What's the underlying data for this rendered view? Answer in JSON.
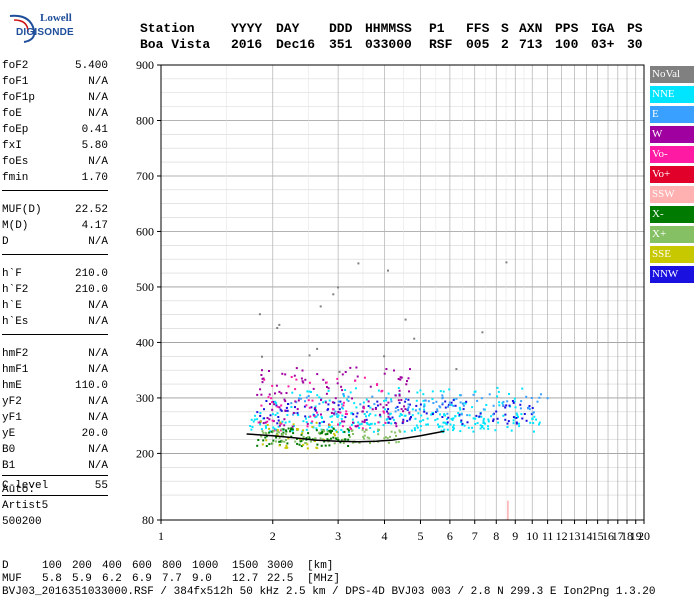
{
  "logo": {
    "line1": "Lowell",
    "line2": "DIGISONDE"
  },
  "header": {
    "labels": [
      "Station",
      "YYYY",
      "DAY",
      "DDD",
      "HHMMSS",
      "P1",
      "FFS",
      "S",
      "AXN",
      "PPS",
      "IGA",
      "PS"
    ],
    "values": [
      "Boa Vista",
      "2016",
      "Dec16",
      "351",
      "033000",
      "RSF",
      "005",
      "2",
      "713",
      "100",
      "03+",
      "30"
    ]
  },
  "params": [
    {
      "key": "foF2",
      "value": "5.400"
    },
    {
      "key": "foF1",
      "value": "N/A"
    },
    {
      "key": "foF1p",
      "value": "N/A"
    },
    {
      "key": "foE",
      "value": "N/A"
    },
    {
      "key": "foEp",
      "value": "0.41"
    },
    {
      "key": "fxI",
      "value": "5.80"
    },
    {
      "key": "foEs",
      "value": "N/A"
    },
    {
      "key": "fmin",
      "value": "1.70"
    },
    {
      "key": "MUF(D)",
      "value": "22.52"
    },
    {
      "key": "M(D)",
      "value": "4.17"
    },
    {
      "key": "D",
      "value": "N/A"
    },
    {
      "key": "h`F",
      "value": "210.0"
    },
    {
      "key": "h`F2",
      "value": "210.0"
    },
    {
      "key": "h`E",
      "value": "N/A"
    },
    {
      "key": "h`Es",
      "value": "N/A"
    },
    {
      "key": "hmF2",
      "value": "N/A"
    },
    {
      "key": "hmF1",
      "value": "N/A"
    },
    {
      "key": "hmE",
      "value": "110.0"
    },
    {
      "key": "yF2",
      "value": "N/A"
    },
    {
      "key": "yF1",
      "value": "N/A"
    },
    {
      "key": "yE",
      "value": "20.0"
    },
    {
      "key": "B0",
      "value": "N/A"
    },
    {
      "key": "B1",
      "value": "N/A"
    },
    {
      "key": "C-level",
      "value": "55"
    }
  ],
  "auto": {
    "line1": "Auto:",
    "line2": "Artist5",
    "line3": "500200"
  },
  "legend": [
    {
      "label": "NoVal",
      "color": "#808080"
    },
    {
      "label": "NNE",
      "color": "#00e5ff"
    },
    {
      "label": "E",
      "color": "#3aa0ff"
    },
    {
      "label": "W",
      "color": "#a000a0"
    },
    {
      "label": "Vo-",
      "color": "#ff1aa3"
    },
    {
      "label": "Vo+",
      "color": "#e0002a"
    },
    {
      "label": "SSW",
      "color": "#ffb0b0"
    },
    {
      "label": "X-",
      "color": "#007a00"
    },
    {
      "label": "X+",
      "color": "#86c064"
    },
    {
      "label": "SSE",
      "color": "#c8c800"
    },
    {
      "label": "NNW",
      "color": "#1a10e0"
    }
  ],
  "footer": {
    "d_label": "D",
    "d_values": [
      "100",
      "200",
      "400",
      "600",
      "800",
      "1000",
      "1500",
      "3000",
      "[km]"
    ],
    "muf_label": "MUF",
    "muf_values": [
      "5.8",
      "5.9",
      "6.2",
      "6.9",
      "7.7",
      "9.0",
      "12.7",
      "22.5",
      "[MHz]"
    ],
    "info": "BVJ03_2016351033000.RSF / 384fx512h 50 kHz 2.5 km / DPS-4D BVJ03 003 / 2.8 N 299.3 E Ion2Png 1.3.20"
  },
  "chart_data": {
    "type": "scatter",
    "xlim": [
      1,
      20
    ],
    "ylim": [
      80,
      900
    ],
    "x_ticks": [
      1,
      2,
      3,
      4,
      5,
      6,
      7,
      8,
      9,
      10,
      11,
      12,
      13,
      14,
      15,
      16,
      17,
      18,
      19,
      20
    ],
    "y_ticks": [
      80,
      200,
      300,
      400,
      500,
      600,
      700,
      800,
      900
    ],
    "grid": true,
    "legend_position": "right",
    "x_scale": "log",
    "trace": {
      "x": [
        1.7,
        2.0,
        2.3,
        2.6,
        3.0,
        3.4,
        3.8,
        4.2,
        4.6,
        5.0,
        5.4,
        5.8
      ],
      "y": [
        235,
        232,
        228,
        224,
        222,
        221,
        222,
        224,
        228,
        232,
        236,
        240
      ]
    },
    "reference_marks": [
      {
        "x": 8.6,
        "y": [
          80,
          115
        ]
      }
    ],
    "point_clusters": [
      {
        "series": "NNE",
        "x": [
          1.7,
          10.5
        ],
        "y": [
          240,
          275
        ],
        "density": 1.0
      },
      {
        "series": "NNE",
        "x": [
          2.0,
          9.5
        ],
        "y": [
          280,
          320
        ],
        "density": 0.35
      },
      {
        "series": "NNW",
        "x": [
          1.8,
          10.3
        ],
        "y": [
          255,
          300
        ],
        "density": 0.55
      },
      {
        "series": "E",
        "x": [
          2.2,
          11.0
        ],
        "y": [
          270,
          310
        ],
        "density": 0.4
      },
      {
        "series": "W",
        "x": [
          1.8,
          4.8
        ],
        "y": [
          250,
          360
        ],
        "density": 0.55
      },
      {
        "series": "Vo-",
        "x": [
          1.8,
          4.0
        ],
        "y": [
          240,
          340
        ],
        "density": 0.25
      },
      {
        "series": "X-",
        "x": [
          1.8,
          3.2
        ],
        "y": [
          215,
          250
        ],
        "density": 0.4
      },
      {
        "series": "X+",
        "x": [
          1.8,
          4.5
        ],
        "y": [
          220,
          245
        ],
        "density": 0.35
      },
      {
        "series": "SSE",
        "x": [
          1.8,
          3.0
        ],
        "y": [
          210,
          260
        ],
        "density": 0.15
      },
      {
        "series": "NoVal",
        "x": [
          1.8,
          9.5
        ],
        "y": [
          300,
          560
        ],
        "density": 0.08
      }
    ]
  }
}
